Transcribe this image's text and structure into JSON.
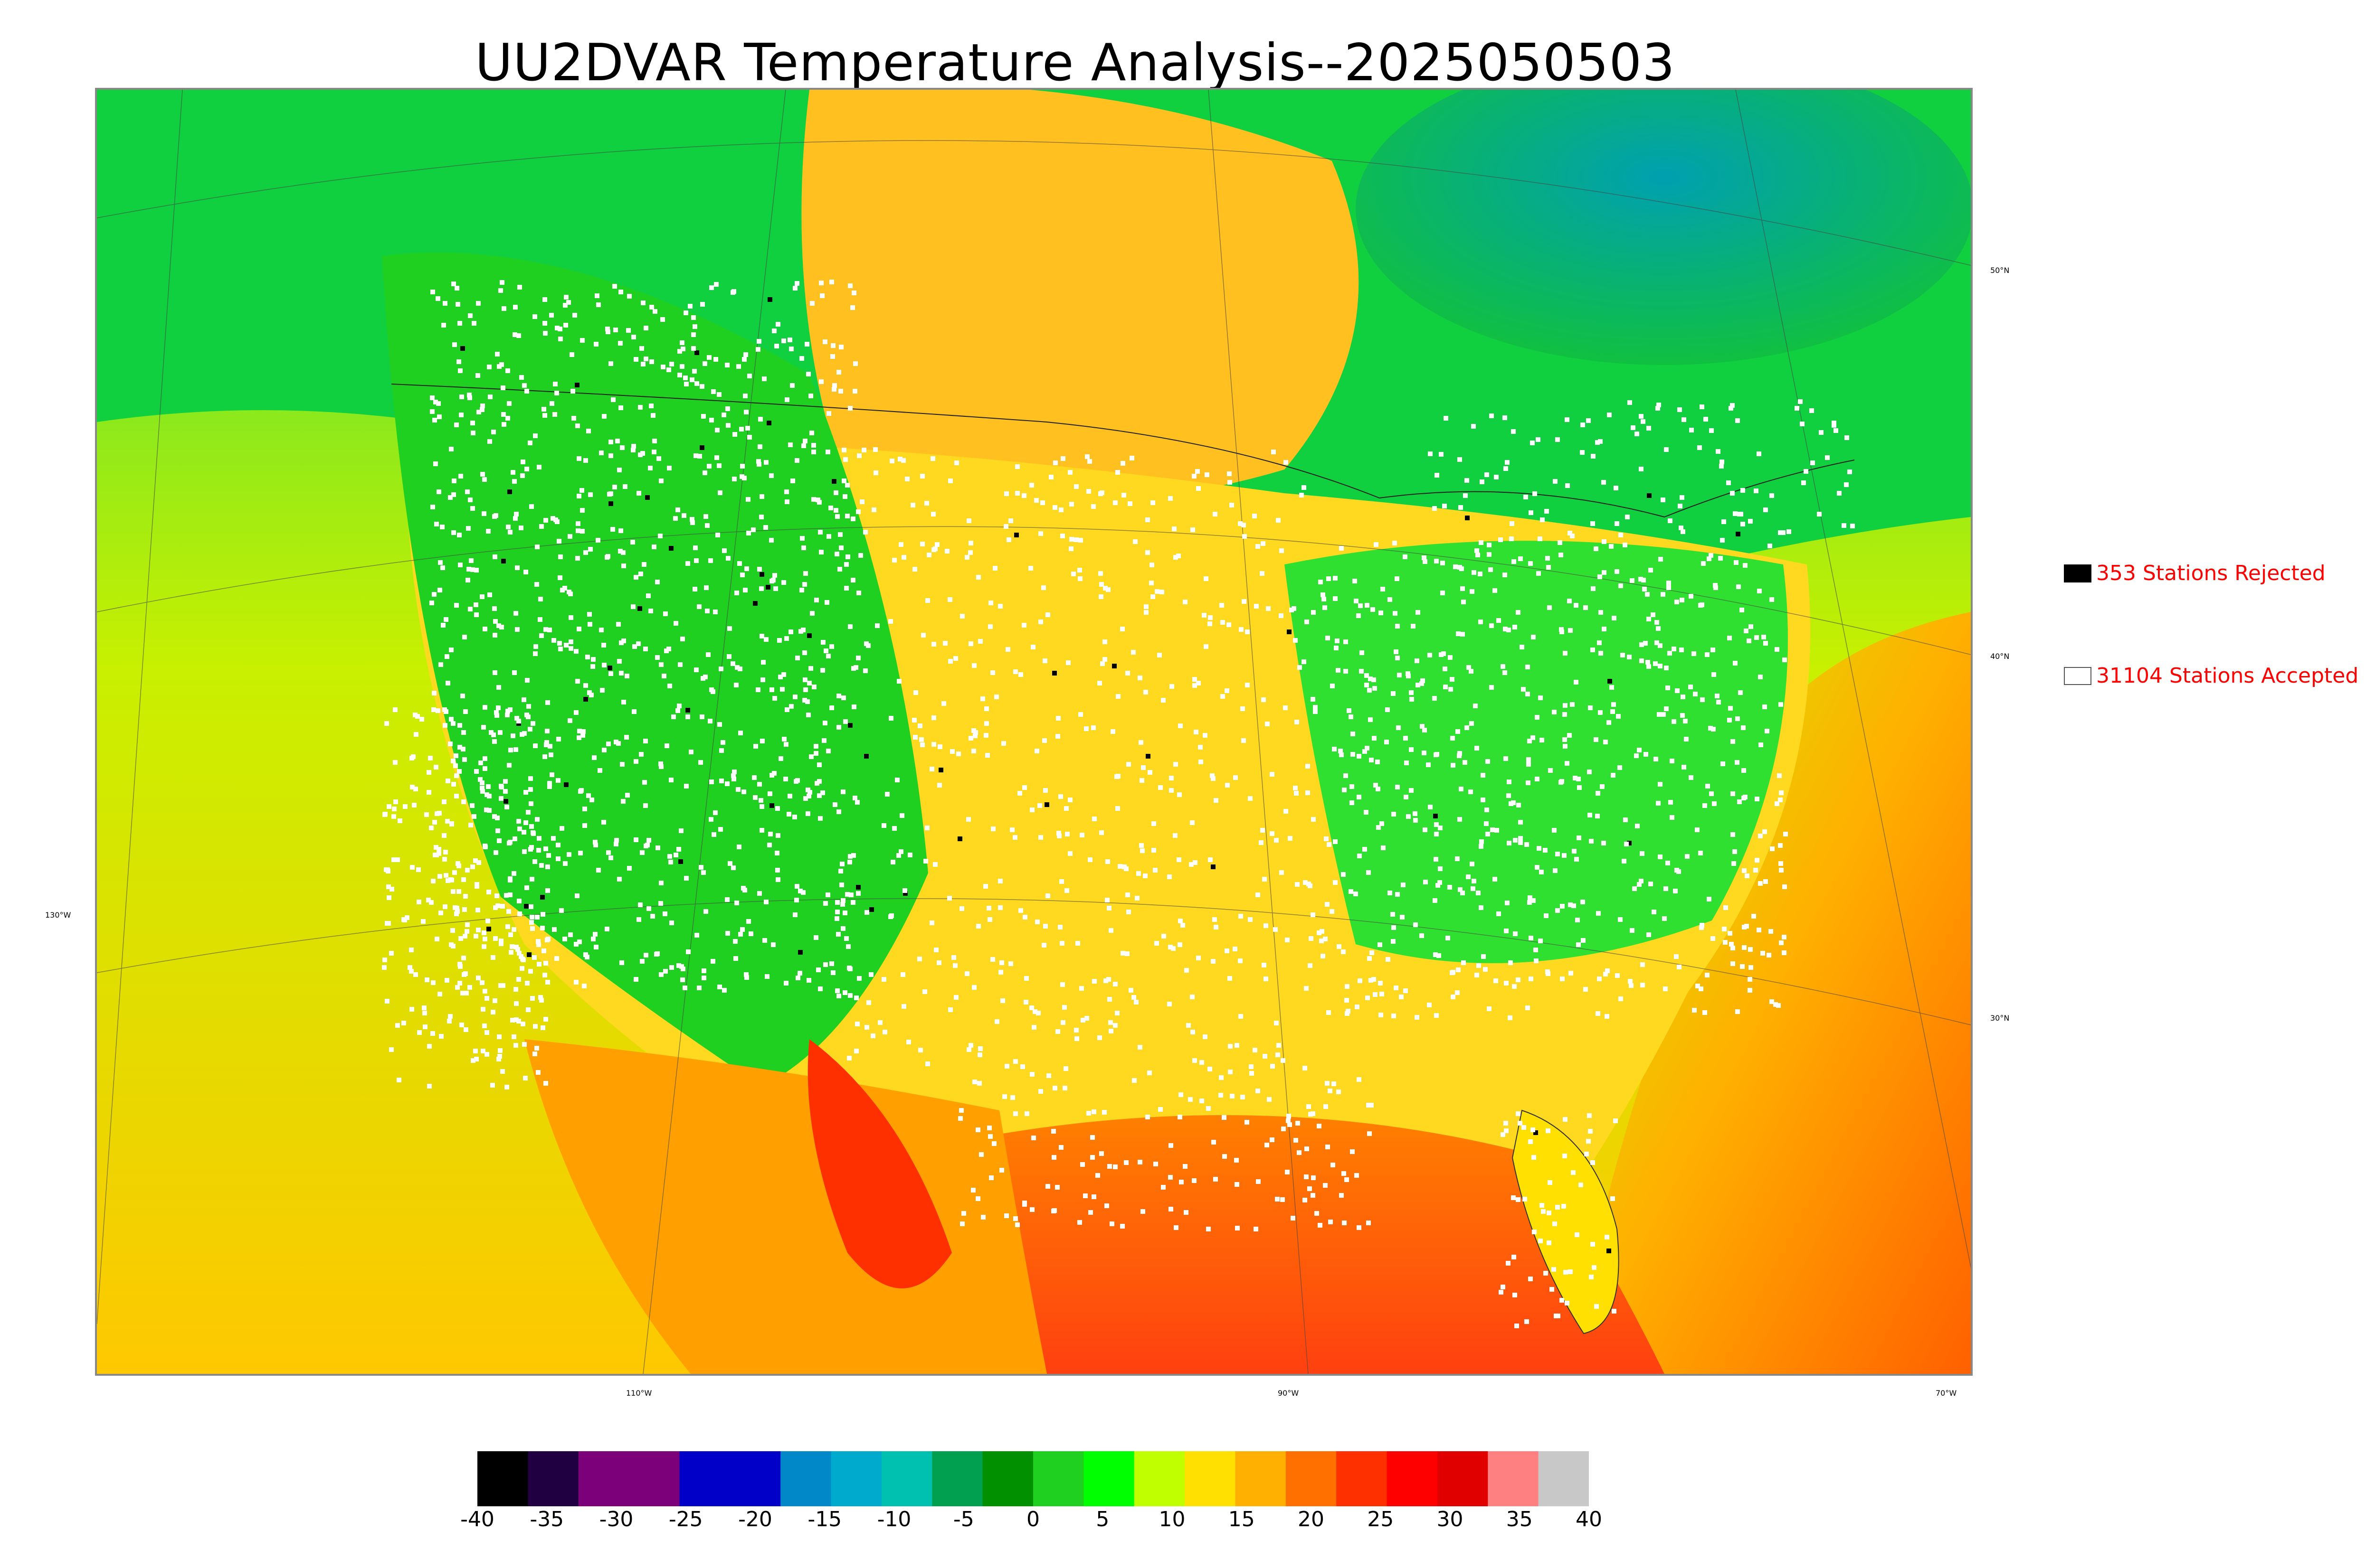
{
  "title": "UU2DVAR Temperature Analysis--2025050503",
  "legend": {
    "rejected": {
      "label": "353 Stations Rejected",
      "box_color": "#000000"
    },
    "accepted": {
      "label": "31104 Stations Accepted",
      "box_color": "#ffffff"
    },
    "text_color": "#ff0000"
  },
  "latitude_labels": [
    "50°N",
    "40°N",
    "30°N"
  ],
  "longitude_labels": [
    "130°W",
    "110°W",
    "90°W",
    "70°W"
  ],
  "colorbar": {
    "ticks": [
      "-40",
      "-35",
      "-30",
      "-25",
      "-20",
      "-15",
      "-10",
      "-5",
      "0",
      "5",
      "10",
      "15",
      "20",
      "25",
      "30",
      "35",
      "40"
    ],
    "colors": [
      "#000000",
      "#200040",
      "#7b0079",
      "#7b0079",
      "#0000c8",
      "#0000c8",
      "#0088c8",
      "#00aacc",
      "#00c0b0",
      "#00a050",
      "#009000",
      "#20d020",
      "#00ff00",
      "#c0ff00",
      "#ffe000",
      "#ffb000",
      "#ff7000",
      "#ff3000",
      "#ff0000",
      "#e00000",
      "#ff8080",
      "#c8c8c8"
    ]
  },
  "map": {
    "regions": {
      "pacific_ocean": "#d4e800",
      "west_mountains": "#20d020",
      "plains": "#ffd000",
      "gulf": "#ff6010",
      "atlantic": "#ffa500",
      "canada_north": "#10c040",
      "hudson_bay_area": "#00a0a0",
      "desert_hot": "#ff3000"
    },
    "station_colors": {
      "accepted": "#ffffff",
      "rejected": "#000000"
    }
  }
}
